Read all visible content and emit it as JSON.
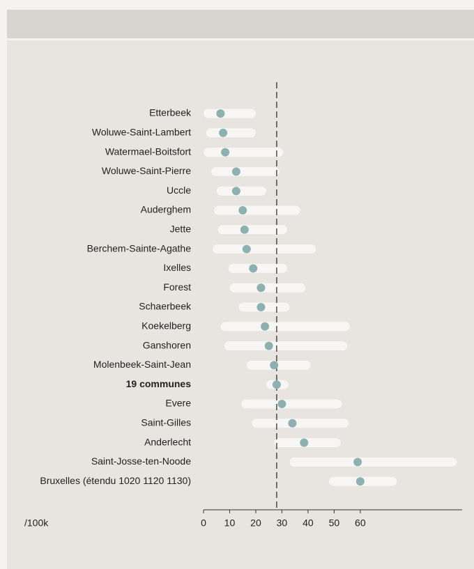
{
  "chart_data": {
    "type": "dot-range",
    "categories": [
      "Etterbeek",
      "Woluwe-Saint-Lambert",
      "Watermael-Boitsfort",
      "Woluwe-Saint-Pierre",
      "Uccle",
      "Auderghem",
      "Jette",
      "Berchem-Sainte-Agathe",
      "Ixelles",
      "Forest",
      "Schaerbeek",
      "Koekelberg",
      "Ganshoren",
      "Molenbeek-Saint-Jean",
      "19 communes",
      "Evere",
      "Saint-Gilles",
      "Anderlecht",
      "Saint-Josse-ten-Noode",
      "Bruxelles (étendu 1020 1120 1130)"
    ],
    "highlight_index": 14,
    "series": [
      {
        "color": "#8fb0b1",
        "range_color": "#f7f6f4",
        "values": [
          6.5,
          7.5,
          8.3,
          12.5,
          12.5,
          15,
          15.7,
          16.5,
          19,
          22,
          22,
          23.5,
          25,
          27,
          28,
          30,
          34,
          38.5,
          59,
          60
        ],
        "low": [
          0,
          1,
          0,
          3,
          5,
          4,
          5.5,
          3.5,
          9.5,
          10,
          13.5,
          6.5,
          8,
          16.5,
          24,
          14.5,
          18.5,
          27,
          33,
          48
        ],
        "high": [
          20,
          20,
          30.5,
          29,
          24,
          37,
          32,
          43,
          32,
          39,
          33,
          56,
          55,
          41,
          32.5,
          53,
          55.5,
          52.5,
          97,
          74
        ]
      }
    ],
    "reference": 28,
    "x_label": "/100k",
    "xlim": [
      0,
      99
    ],
    "xticks": [
      0,
      10,
      20,
      30,
      40,
      50,
      60
    ]
  }
}
